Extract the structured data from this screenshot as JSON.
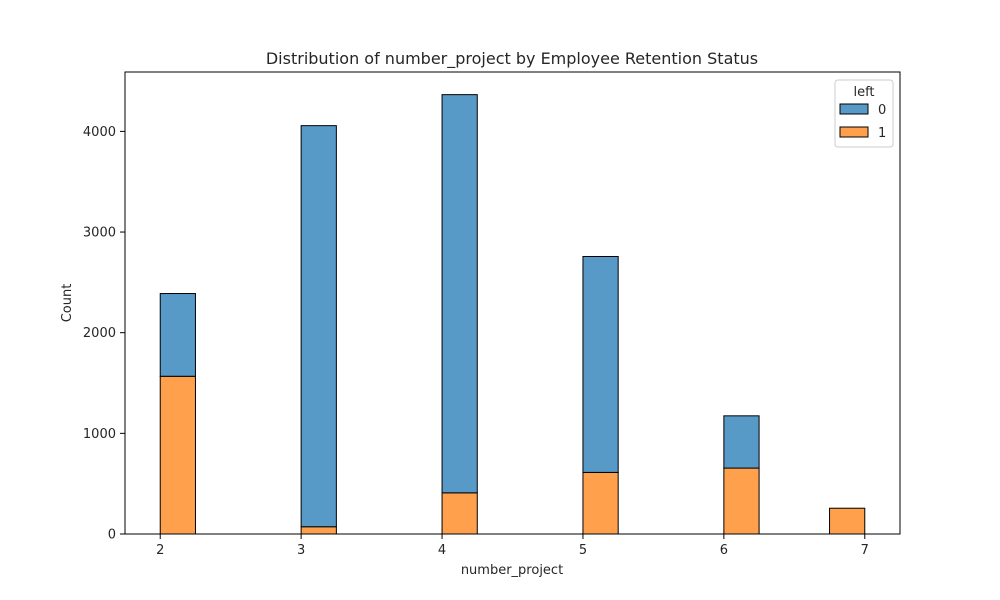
{
  "chart_data": {
    "type": "bar",
    "stacked": true,
    "title": "Distribution of number_project by Employee Retention Status",
    "xlabel": "number_project",
    "ylabel": "Count",
    "categories": [
      2,
      3,
      4,
      5,
      6,
      7
    ],
    "xlim": [
      1.75,
      7.25
    ],
    "ylim": [
      0,
      4590
    ],
    "xticks": [
      "2",
      "3",
      "4",
      "5",
      "6",
      "7"
    ],
    "yticks": [
      0,
      1000,
      2000,
      3000,
      4000
    ],
    "grid": false,
    "legend": {
      "title": "left",
      "placement": "top-right",
      "entries": [
        "0",
        "1"
      ]
    },
    "series": [
      {
        "name": "0",
        "color": "#5799c7",
        "values": [
          822,
          3985,
          3956,
          2145,
          519,
          0
        ]
      },
      {
        "name": "1",
        "color": "#ffa04d",
        "values": [
          1567,
          72,
          409,
          612,
          655,
          256
        ]
      }
    ]
  }
}
